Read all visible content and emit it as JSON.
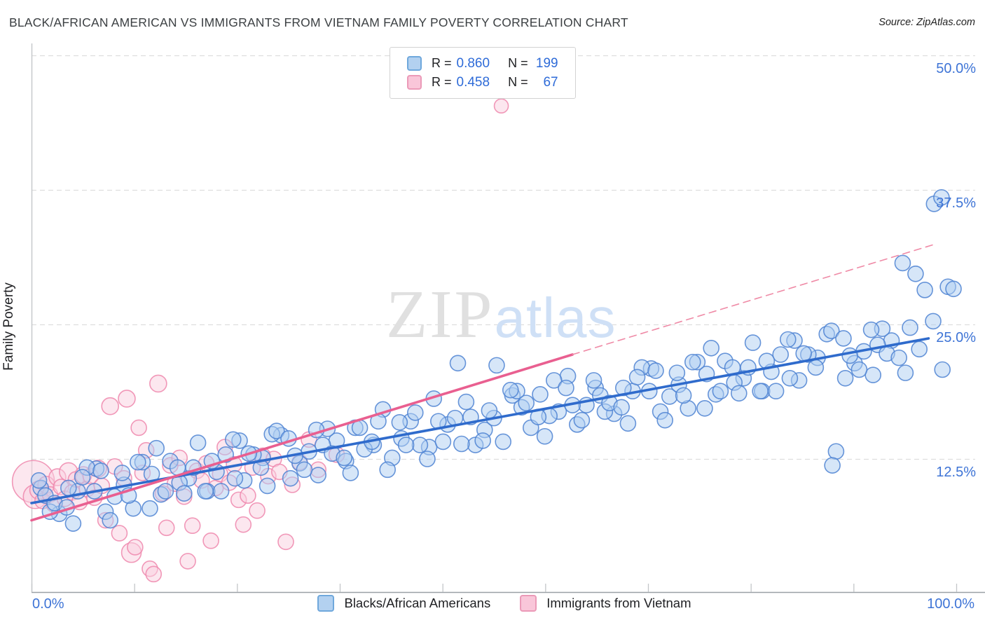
{
  "header": {
    "title": "BLACK/AFRICAN AMERICAN VS IMMIGRANTS FROM VIETNAM FAMILY POVERTY CORRELATION CHART",
    "source": "Source: ZipAtlas.com"
  },
  "axis": {
    "y_label": "Family Poverty",
    "x_min_label": "0.0%",
    "x_max_label": "100.0%",
    "x_tick_count": 10,
    "y_ticks": [
      {
        "value": 50.0,
        "label": "50.0%"
      },
      {
        "value": 37.5,
        "label": "37.5%"
      },
      {
        "value": 25.0,
        "label": "25.0%"
      },
      {
        "value": 12.5,
        "label": "12.5%"
      }
    ]
  },
  "legend_box": {
    "rows": [
      {
        "series": "Blacks/African Americans",
        "r_label": "R =",
        "r_value": "0.860",
        "n_label": "N =",
        "n_value": "199"
      },
      {
        "series": "Immigrants from Vietnam",
        "r_label": "R =",
        "r_value": "0.458",
        "n_label": "N =",
        "n_value": "67"
      }
    ]
  },
  "bottom_legend": [
    {
      "label": "Blacks/African Americans",
      "color": "#b3d1f0"
    },
    {
      "label": "Immigrants from Vietnam",
      "color": "#f9c6d9"
    }
  ],
  "watermark": {
    "zip": "ZIP",
    "atlas": "atlas"
  },
  "colors": {
    "blue_fill": "#aecdf2",
    "blue_stroke": "#4d82d2",
    "blue_line": "#2f6bcc",
    "pink_fill": "#f9cfe0",
    "pink_stroke": "#ef87ad",
    "pink_line": "#e95f90",
    "pink_dash": "#ef8aa6",
    "grid": "#dedede",
    "axis": "#9aa0a6",
    "tick": "#c3c6c9",
    "tick_label": "#3e74d6"
  },
  "chart_data": {
    "type": "scatter",
    "title": "BLACK/AFRICAN AMERICAN VS IMMIGRANTS FROM VIETNAM FAMILY POVERTY CORRELATION CHART",
    "xlabel": "",
    "ylabel": "Family Poverty",
    "xlim": [
      0,
      100
    ],
    "ylim": [
      0,
      52
    ],
    "grid": "dashed-horizontal",
    "legend_position": "bottom-center",
    "series": [
      {
        "name": "Blacks/African Americans",
        "R": 0.86,
        "N": 199,
        "points": [
          [
            1,
            9.8
          ],
          [
            3,
            7.4
          ],
          [
            5,
            9.5
          ],
          [
            7,
            11.6
          ],
          [
            9,
            9.0
          ],
          [
            11,
            7.9
          ],
          [
            13,
            11.1
          ],
          [
            15,
            12.3
          ],
          [
            17,
            10.7
          ],
          [
            19,
            9.5
          ],
          [
            21,
            12.9
          ],
          [
            23,
            10.5
          ],
          [
            25,
            12.6
          ],
          [
            27,
            14.7
          ],
          [
            29,
            12.1
          ],
          [
            31,
            11.0
          ],
          [
            33,
            14.2
          ],
          [
            35,
            15.4
          ],
          [
            37,
            13.8
          ],
          [
            39,
            12.6
          ],
          [
            41,
            16.0
          ],
          [
            43,
            13.6
          ],
          [
            45,
            15.7
          ],
          [
            47,
            17.8
          ],
          [
            49,
            15.2
          ],
          [
            51,
            14.1
          ],
          [
            53,
            17.3
          ],
          [
            55,
            18.5
          ],
          [
            57,
            16.9
          ],
          [
            59,
            15.7
          ],
          [
            61,
            19.1
          ],
          [
            63,
            16.7
          ],
          [
            65,
            18.8
          ],
          [
            67,
            20.9
          ],
          [
            69,
            18.3
          ],
          [
            71,
            17.2
          ],
          [
            73,
            20.4
          ],
          [
            75,
            21.6
          ],
          [
            77,
            20.0
          ],
          [
            79,
            18.8
          ],
          [
            81,
            22.2
          ],
          [
            83,
            19.8
          ],
          [
            85,
            21.9
          ],
          [
            87,
            13.2
          ],
          [
            89,
            21.4
          ],
          [
            91,
            20.3
          ],
          [
            93,
            23.5
          ],
          [
            95,
            24.7
          ],
          [
            97.6,
            36.2
          ],
          [
            99.1,
            28.5
          ],
          [
            2,
            7.6
          ],
          [
            4,
            9.8
          ],
          [
            6,
            11.7
          ],
          [
            8,
            7.6
          ],
          [
            10,
            10.1
          ],
          [
            12,
            12.2
          ],
          [
            14,
            9.2
          ],
          [
            16,
            10.3
          ],
          [
            18,
            14.0
          ],
          [
            20,
            11.3
          ],
          [
            22,
            10.7
          ],
          [
            24,
            12.9
          ],
          [
            26,
            14.8
          ],
          [
            28,
            10.7
          ],
          [
            30,
            13.2
          ],
          [
            32,
            15.3
          ],
          [
            34,
            12.3
          ],
          [
            36,
            13.4
          ],
          [
            38,
            17.1
          ],
          [
            40,
            14.4
          ],
          [
            42,
            13.8
          ],
          [
            44,
            16.0
          ],
          [
            46.1,
            21.4
          ],
          [
            48,
            13.8
          ],
          [
            50,
            16.3
          ],
          [
            52,
            18.4
          ],
          [
            54,
            15.4
          ],
          [
            56,
            16.5
          ],
          [
            58,
            20.2
          ],
          [
            60,
            17.5
          ],
          [
            62,
            16.9
          ],
          [
            64,
            19.1
          ],
          [
            66,
            21.0
          ],
          [
            68,
            16.9
          ],
          [
            70,
            19.4
          ],
          [
            72,
            21.5
          ],
          [
            74,
            18.5
          ],
          [
            76,
            19.6
          ],
          [
            78,
            23.3
          ],
          [
            80,
            20.6
          ],
          [
            82,
            20.0
          ],
          [
            84,
            22.2
          ],
          [
            86,
            24.1
          ],
          [
            88,
            20.0
          ],
          [
            90,
            22.5
          ],
          [
            92,
            24.6
          ],
          [
            94.2,
            30.7
          ],
          [
            96,
            22.7
          ],
          [
            98.4,
            36.8
          ],
          [
            1.5,
            9.1
          ],
          [
            4.5,
            6.5
          ],
          [
            7.5,
            11.4
          ],
          [
            10.5,
            9.1
          ],
          [
            13.5,
            13.5
          ],
          [
            16.5,
            9.3
          ],
          [
            19.5,
            12.3
          ],
          [
            22.5,
            14.2
          ],
          [
            25.5,
            10.0
          ],
          [
            28.5,
            12.8
          ],
          [
            31.5,
            13.8
          ],
          [
            34.5,
            11.2
          ],
          [
            37.5,
            16.0
          ],
          [
            40.5,
            13.8
          ],
          [
            43.5,
            18.1
          ],
          [
            46.5,
            13.9
          ],
          [
            49.5,
            17.0
          ],
          [
            52.5,
            18.8
          ],
          [
            55.5,
            14.6
          ],
          [
            58.5,
            17.5
          ],
          [
            61.5,
            18.4
          ],
          [
            64.5,
            15.8
          ],
          [
            67.5,
            20.7
          ],
          [
            70.5,
            18.4
          ],
          [
            73.5,
            22.8
          ],
          [
            76.5,
            18.6
          ],
          [
            79.5,
            21.6
          ],
          [
            82.5,
            23.5
          ],
          [
            86.6,
            11.9
          ],
          [
            88.5,
            22.1
          ],
          [
            91.5,
            23.1
          ],
          [
            94.5,
            20.5
          ],
          [
            97.5,
            25.3
          ],
          [
            2.5,
            8.4
          ],
          [
            5.5,
            10.8
          ],
          [
            8.5,
            6.8
          ],
          [
            11.5,
            12.2
          ],
          [
            14.5,
            9.5
          ],
          [
            17.5,
            11.7
          ],
          [
            20.5,
            9.5
          ],
          [
            23.5,
            13.0
          ],
          [
            26.5,
            15.1
          ],
          [
            29.5,
            11.5
          ],
          [
            32.5,
            13.0
          ],
          [
            35.5,
            15.4
          ],
          [
            38.5,
            11.5
          ],
          [
            41.5,
            16.8
          ],
          [
            44.5,
            14.1
          ],
          [
            47.5,
            16.4
          ],
          [
            50.3,
            21.2
          ],
          [
            53.5,
            17.7
          ],
          [
            56.5,
            19.8
          ],
          [
            59.5,
            16.1
          ],
          [
            62.5,
            17.7
          ],
          [
            65.5,
            20.1
          ],
          [
            68.5,
            16.1
          ],
          [
            71.5,
            21.5
          ],
          [
            74.5,
            18.8
          ],
          [
            77.5,
            21.0
          ],
          [
            80.5,
            18.8
          ],
          [
            83.5,
            22.3
          ],
          [
            86.5,
            24.4
          ],
          [
            89.5,
            20.8
          ],
          [
            92.5,
            22.3
          ],
          [
            95.6,
            29.7
          ],
          [
            98.5,
            20.8
          ],
          [
            0.8,
            10.5
          ],
          [
            3.8,
            8.0
          ],
          [
            6.8,
            9.5
          ],
          [
            9.8,
            11.2
          ],
          [
            12.8,
            7.9
          ],
          [
            15.8,
            11.7
          ],
          [
            18.8,
            9.5
          ],
          [
            21.8,
            14.3
          ],
          [
            24.8,
            11.7
          ],
          [
            27.8,
            14.4
          ],
          [
            30.8,
            15.2
          ],
          [
            33.8,
            12.6
          ],
          [
            36.8,
            14.1
          ],
          [
            39.8,
            15.9
          ],
          [
            42.8,
            12.5
          ],
          [
            45.8,
            16.3
          ],
          [
            48.8,
            14.2
          ],
          [
            51.8,
            18.9
          ],
          [
            54.8,
            16.4
          ],
          [
            57.8,
            19.1
          ],
          [
            60.8,
            19.8
          ],
          [
            63.8,
            17.3
          ],
          [
            66.8,
            18.8
          ],
          [
            69.8,
            20.5
          ],
          [
            72.8,
            17.2
          ],
          [
            75.8,
            21.0
          ],
          [
            78.8,
            18.8
          ],
          [
            81.8,
            23.6
          ],
          [
            84.8,
            21.0
          ],
          [
            87.8,
            23.7
          ],
          [
            90.8,
            24.5
          ],
          [
            93.8,
            21.9
          ],
          [
            96.6,
            28.2
          ],
          [
            99.7,
            28.3
          ]
        ]
      },
      {
        "name": "Immigrants from Vietnam",
        "R": 0.458,
        "N": 67,
        "points": [
          [
            0.2,
            10.4,
            30
          ],
          [
            0.4,
            9.0,
            17
          ],
          [
            0.8,
            9.6,
            13
          ],
          [
            1.2,
            8.6,
            11
          ],
          [
            1.6,
            10.1,
            12
          ],
          [
            2.0,
            9.2,
            11
          ],
          [
            2.4,
            8.3,
            11
          ],
          [
            2.8,
            10.8,
            12
          ],
          [
            3.2,
            9.9,
            11
          ],
          [
            3.6,
            8.8,
            11
          ],
          [
            4.0,
            11.3,
            13
          ],
          [
            4.4,
            9.4,
            11
          ],
          [
            4.8,
            10.6,
            11
          ],
          [
            5.2,
            8.5,
            11
          ],
          [
            5.6,
            11.0,
            12
          ],
          [
            6.0,
            9.7,
            11
          ],
          [
            6.4,
            10.9,
            11
          ],
          [
            6.8,
            8.9,
            11
          ],
          [
            7.2,
            11.6,
            12
          ],
          [
            7.6,
            10.0,
            11
          ],
          [
            8.0,
            6.8,
            11
          ],
          [
            8.5,
            17.4,
            12
          ],
          [
            9.0,
            11.8,
            11
          ],
          [
            9.5,
            5.6,
            11
          ],
          [
            10.0,
            10.7,
            11
          ],
          [
            10.3,
            18.1,
            12
          ],
          [
            10.8,
            3.8,
            14
          ],
          [
            11.2,
            4.3,
            11
          ],
          [
            11.6,
            15.4,
            11
          ],
          [
            12.0,
            11.2,
            11
          ],
          [
            12.4,
            13.3,
            11
          ],
          [
            12.8,
            2.3,
            11
          ],
          [
            13.2,
            1.8,
            11
          ],
          [
            13.7,
            19.5,
            12
          ],
          [
            14.2,
            9.3,
            11
          ],
          [
            14.6,
            6.1,
            11
          ],
          [
            15.0,
            11.9,
            11
          ],
          [
            15.5,
            10.2,
            11
          ],
          [
            16.0,
            12.6,
            11
          ],
          [
            16.5,
            9.0,
            11
          ],
          [
            16.9,
            3.0,
            11
          ],
          [
            17.4,
            6.3,
            11
          ],
          [
            17.9,
            11.4,
            11
          ],
          [
            18.4,
            10.5,
            11
          ],
          [
            18.9,
            12.1,
            11
          ],
          [
            19.4,
            4.9,
            11
          ],
          [
            19.9,
            9.8,
            11
          ],
          [
            20.4,
            11.1,
            11
          ],
          [
            20.9,
            13.6,
            11
          ],
          [
            21.4,
            10.3,
            11
          ],
          [
            21.9,
            12.0,
            11
          ],
          [
            22.4,
            8.7,
            11
          ],
          [
            22.9,
            6.4,
            11
          ],
          [
            23.4,
            9.1,
            11
          ],
          [
            23.9,
            11.7,
            11
          ],
          [
            24.4,
            7.7,
            11
          ],
          [
            25.0,
            12.8,
            11
          ],
          [
            25.6,
            10.9,
            11
          ],
          [
            26.2,
            12.5,
            11
          ],
          [
            26.8,
            11.3,
            11
          ],
          [
            27.5,
            4.8,
            11
          ],
          [
            28.2,
            10.1,
            11
          ],
          [
            29.0,
            12.2,
            11
          ],
          [
            30.0,
            14.3,
            11
          ],
          [
            31.0,
            11.5,
            11
          ],
          [
            33.0,
            12.9,
            11
          ],
          [
            50.8,
            45.3,
            10
          ]
        ]
      }
    ],
    "trend_lines": [
      {
        "series": "Blacks/African Americans",
        "style": "solid",
        "x1": 0,
        "y1": 8.4,
        "x2": 97.0,
        "y2": 23.7
      },
      {
        "series": "Immigrants from Vietnam",
        "style": "solid",
        "x1": 0,
        "y1": 6.8,
        "x2": 58.5,
        "y2": 22.2
      },
      {
        "series": "Immigrants from Vietnam",
        "style": "dashed",
        "x1": 58.5,
        "y1": 22.2,
        "x2": 97.5,
        "y2": 32.4
      }
    ]
  }
}
